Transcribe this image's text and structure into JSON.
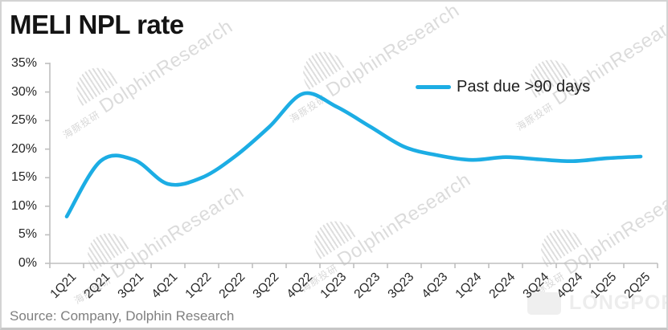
{
  "header": {
    "title": "MELI NPL rate"
  },
  "legend": {
    "label": "Past due >90 days"
  },
  "source_note": "Source: Company, Dolphin Research",
  "watermark": {
    "brand_cn": "海豚投研",
    "brand_en": "DolphinResearch",
    "platform": "LONGPORT"
  },
  "colors": {
    "line": "#1CADE4",
    "axis": "#BFBFBF",
    "tick_text": "#262626",
    "source_text": "#7F7F7F"
  },
  "chart_data": {
    "type": "line",
    "title": "MELI NPL rate",
    "categories": [
      "1Q21",
      "2Q21",
      "3Q21",
      "4Q21",
      "1Q22",
      "2Q22",
      "3Q22",
      "4Q22",
      "1Q23",
      "2Q23",
      "3Q23",
      "4Q23",
      "1Q24",
      "2Q24",
      "3Q24",
      "4Q24",
      "1Q25",
      "2Q25"
    ],
    "series": [
      {
        "name": "Past due >90 days",
        "values": [
          8.2,
          17.9,
          18.1,
          13.9,
          15.0,
          18.8,
          23.9,
          29.7,
          27.4,
          23.9,
          20.4,
          18.9,
          18.1,
          18.6,
          18.2,
          17.9,
          18.4,
          18.7
        ]
      }
    ],
    "ylabel": "",
    "xlabel": "",
    "ylim": [
      0,
      35
    ],
    "y_tick_step": 5,
    "y_tick_labels": [
      "0%",
      "5%",
      "10%",
      "15%",
      "20%",
      "25%",
      "30%",
      "35%"
    ],
    "grid": false,
    "smoothed": true,
    "legend_position": "top-right"
  }
}
